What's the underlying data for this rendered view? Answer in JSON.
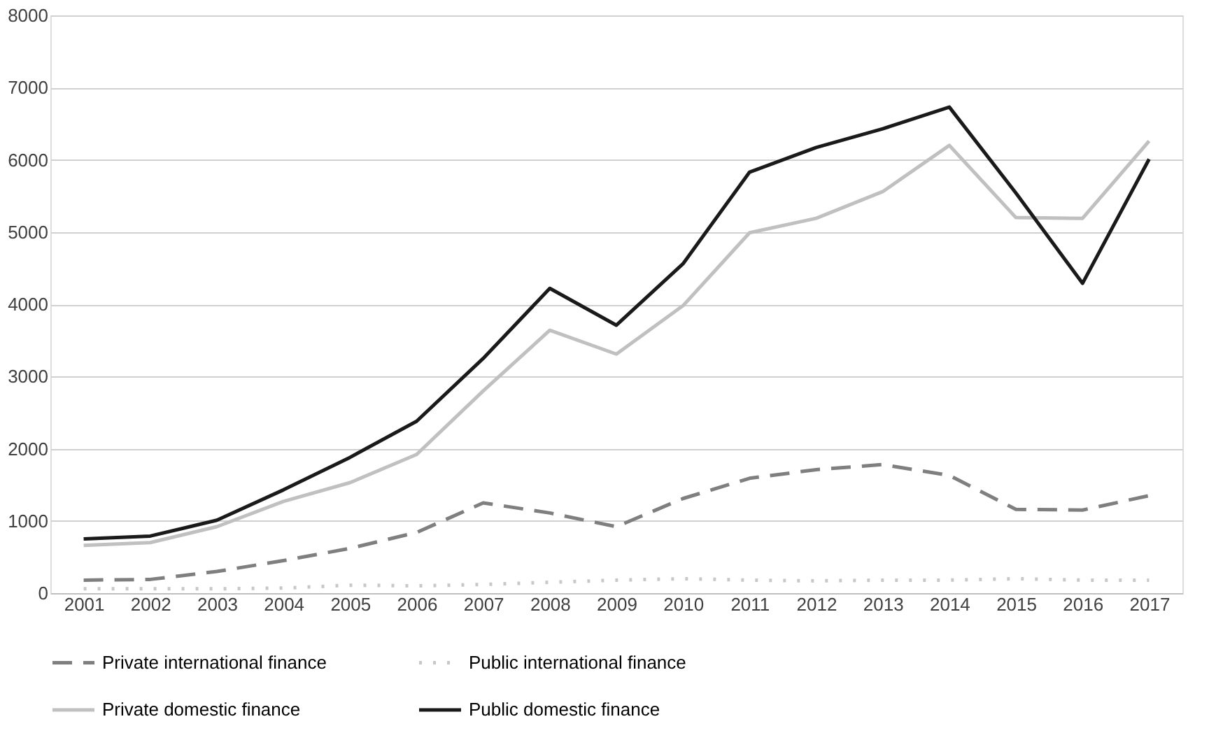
{
  "chart_data": {
    "type": "line",
    "categories": [
      "2001",
      "2002",
      "2003",
      "2004",
      "2005",
      "2006",
      "2007",
      "2008",
      "2009",
      "2010",
      "2011",
      "2012",
      "2013",
      "2014",
      "2015",
      "2016",
      "2017"
    ],
    "ylim": [
      0,
      8000
    ],
    "yticks": [
      0,
      1000,
      2000,
      3000,
      4000,
      5000,
      6000,
      7000,
      8000
    ],
    "grid": "y",
    "legend": "bottom",
    "series": [
      {
        "name": "Private international finance",
        "color": "#7f7f7f",
        "line_style": "dashed",
        "values": [
          180,
          190,
          300,
          450,
          620,
          840,
          1250,
          1110,
          920,
          1310,
          1590,
          1710,
          1780,
          1630,
          1160,
          1150,
          1350
        ]
      },
      {
        "name": "Public international finance",
        "color": "#c8c8c8",
        "line_style": "dotted",
        "values": [
          60,
          60,
          60,
          70,
          110,
          100,
          120,
          150,
          180,
          200,
          180,
          170,
          180,
          180,
          200,
          180,
          180
        ]
      },
      {
        "name": "Private domestic finance",
        "color": "#c0c0c0",
        "line_style": "solid",
        "values": [
          660,
          700,
          920,
          1270,
          1530,
          1920,
          2800,
          3640,
          3310,
          3980,
          4990,
          5190,
          5560,
          6200,
          5200,
          5190,
          6260
        ]
      },
      {
        "name": "Public domestic finance",
        "color": "#1a1a1a",
        "line_style": "solid",
        "values": [
          750,
          790,
          1010,
          1430,
          1880,
          2380,
          3250,
          4220,
          3710,
          4560,
          5830,
          6170,
          6430,
          6730,
          5540,
          4290,
          6010
        ]
      }
    ]
  }
}
